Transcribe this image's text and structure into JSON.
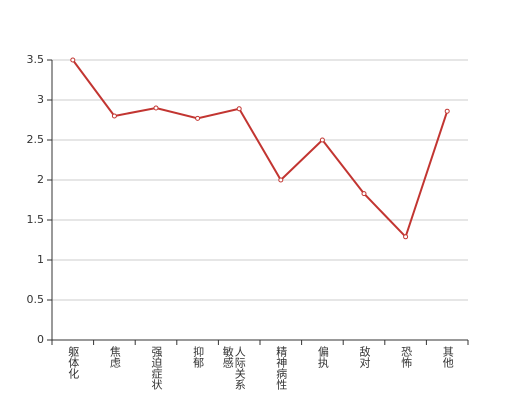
{
  "chart_data": {
    "type": "line",
    "categories": [
      "躯体化",
      "焦虑",
      "强迫症状",
      "抑郁",
      "人际关系敏感",
      "精神病性",
      "偏执",
      "敌对",
      "恐怖",
      "其他"
    ],
    "values": [
      3.5,
      2.8,
      2.9,
      2.77,
      2.89,
      2.0,
      2.5,
      1.83,
      1.29,
      2.86
    ],
    "color": "#c23531",
    "ylim": [
      0,
      3.5
    ],
    "yticks": [
      0,
      0.5,
      1,
      1.5,
      2,
      2.5,
      3,
      3.5
    ],
    "grid": true
  }
}
